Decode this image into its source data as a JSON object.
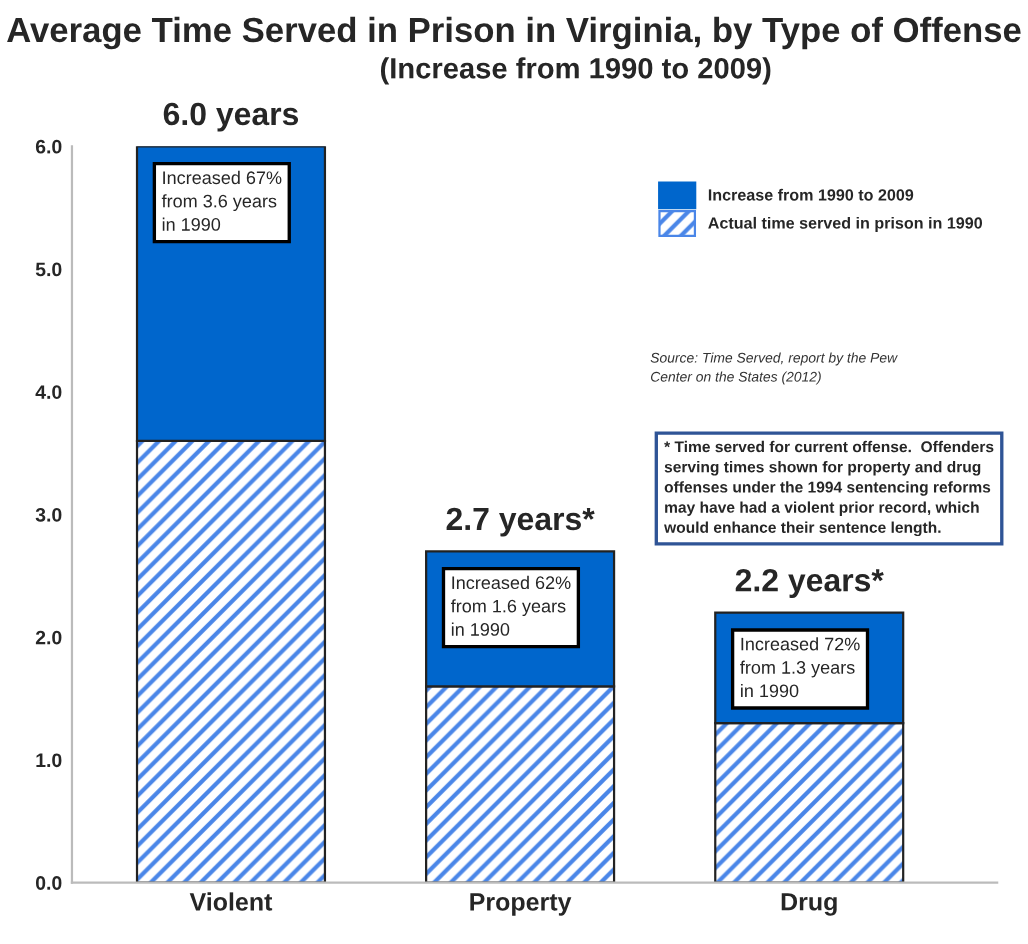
{
  "chart_data": {
    "type": "bar",
    "title": "Average Time Served in Prison in Virginia, by Type of Offense",
    "subtitle": "(Increase from 1990 to 2009)",
    "categories": [
      "Violent",
      "Property",
      "Drug"
    ],
    "stacked": true,
    "series": [
      {
        "name": "Actual time served in prison in 1990",
        "color": "#4a86e8",
        "values": [
          3.6,
          1.6,
          1.3
        ]
      },
      {
        "name": "Increase from 1990 to 2009",
        "color": "#0066cc",
        "values": [
          2.4,
          1.1,
          0.9
        ]
      }
    ],
    "totals": [
      "6.0 years",
      "2.7 years*",
      "2.2 years*"
    ],
    "ylim": [
      0,
      6
    ],
    "yticks": [
      {
        "value": 0,
        "label": "0.0"
      },
      {
        "value": 1,
        "label": "1.0"
      },
      {
        "value": 2,
        "label": "2.0"
      },
      {
        "value": 3,
        "label": "3.0"
      },
      {
        "value": 4,
        "label": "4.0"
      },
      {
        "value": 5,
        "label": "5.0"
      },
      {
        "value": 6,
        "label": "6.0"
      }
    ],
    "annotations": [
      "Increased 67%\nfrom 3.6 years\nin 1990",
      "Increased 62%\nfrom 1.6 years\nin 1990",
      "Increased 72%\nfrom 1.3 years\nin 1990",
      "Source: Time Served, report by the Pew\nCenter on the States (2012)",
      "* Time served for current offense.  Offenders\nserving times shown for property and drug\noffenses under the 1994 sentencing reforms\nmay have had a violent prior record, which\nwould enhance their sentence length."
    ],
    "grid": false,
    "legend": "top right"
  }
}
